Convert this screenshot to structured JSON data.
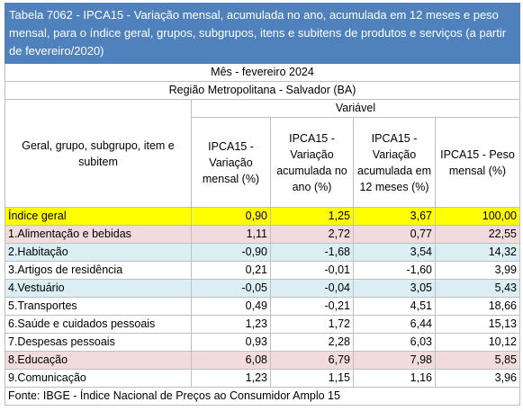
{
  "title": "Tabela 7062 - IPCA15 - Variação mensal, acumulada no ano, acumulada em 12 meses e peso mensal, para o índice geral, grupos, subgrupos, itens e subitens de produtos e serviços (a partir de fevereiro/2020)",
  "period": "Mês - fevereiro 2024",
  "region": "Região Metropolitana - Salvador (BA)",
  "variable_header": "Variável",
  "columns": [
    "Geral, grupo, subgrupo, item e subitem",
    "IPCA15 - Variação mensal (%)",
    "IPCA15 - Variação acumulada no ano (%)",
    "IPCA15 - Variação acumulada em 12 meses (%)",
    "IPCA15 - Peso mensal (%)"
  ],
  "rows": [
    [
      "Índice geral",
      "0,90",
      "1,25",
      "3,67",
      "100,00"
    ],
    [
      "1.Alimentação e bebidas",
      "1,11",
      "2,72",
      "0,77",
      "22,55"
    ],
    [
      "2.Habitação",
      "-0,90",
      "-1,68",
      "3,54",
      "14,32"
    ],
    [
      "3.Artigos de residência",
      "0,21",
      "-0,01",
      "-1,60",
      "3,99"
    ],
    [
      "4.Vestuário",
      "-0,05",
      "-0,04",
      "3,05",
      "5,43"
    ],
    [
      "5.Transportes",
      "0,49",
      "-0,21",
      "4,51",
      "18,66"
    ],
    [
      "6.Saúde e cuidados pessoais",
      "1,23",
      "1,72",
      "6,44",
      "15,13"
    ],
    [
      "7.Despesas pessoais",
      "0,93",
      "2,28",
      "6,03",
      "10,12"
    ],
    [
      "8.Educação",
      "6,08",
      "6,79",
      "7,98",
      "5,85"
    ],
    [
      "9.Comunicação",
      "1,23",
      "1,15",
      "1,16",
      "3,96"
    ]
  ],
  "footer": "Fonte: IBGE - Índice Nacional de Preços ao Consumidor Amplo 15"
}
